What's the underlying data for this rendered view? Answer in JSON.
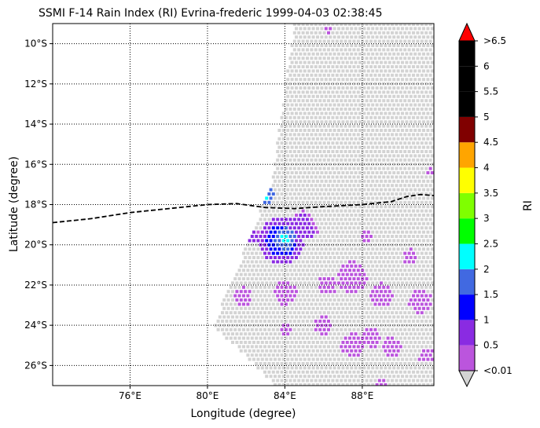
{
  "chart_data": {
    "type": "heatmap",
    "title": "SSMI F-14 Rain Index (RI) Evrina-frederic 1999-04-03 02:38:45",
    "xlabel": "Longitude (degree)",
    "ylabel": "Latitude (degree)",
    "xlim": [
      72,
      91.7
    ],
    "ylim": [
      -27,
      -9
    ],
    "x_ticks": [
      76,
      80,
      84,
      88
    ],
    "x_tick_labels": [
      "76°E",
      "80°E",
      "84°E",
      "88°E"
    ],
    "y_ticks": [
      -10,
      -12,
      -14,
      -16,
      -18,
      -20,
      -22,
      -24,
      -26
    ],
    "y_tick_labels": [
      "10°S",
      "12°S",
      "14°S",
      "16°S",
      "18°S",
      "20°S",
      "22°S",
      "24°S",
      "26°S"
    ],
    "grid": "dotted",
    "colorbar": {
      "label": "RI",
      "levels": [
        0.01,
        0.5,
        1,
        1.5,
        2,
        2.5,
        3,
        3.5,
        4,
        4.5,
        5,
        5.5,
        6,
        6.5
      ],
      "tick_labels": [
        "<0.01",
        "0.5",
        "1",
        "1.5",
        "2",
        "2.5",
        "3",
        "3.5",
        "4",
        "4.5",
        "5",
        "5.5",
        "6",
        ">6.5"
      ],
      "colors": [
        "#bb55dd",
        "#8a2be2",
        "#0000ff",
        "#4169e1",
        "#00ffff",
        "#00ff00",
        "#7fff00",
        "#ffff00",
        "#ffa500",
        "#800000",
        "#000000",
        "#000000",
        "#000000"
      ],
      "under_color": "#d3d3d3",
      "over_color": "#ff0000"
    },
    "swath": {
      "corners_lonlat": [
        [
          84.5,
          -9.0
        ],
        [
          91.7,
          -9.0
        ],
        [
          91.7,
          -27.0
        ],
        [
          83.5,
          -27.0
        ],
        [
          80.3,
          -24.0
        ],
        [
          83.3,
          -17.0
        ]
      ],
      "no_rain_color": "#d3d3d3"
    },
    "track": {
      "style": "dashed",
      "color": "#000000",
      "points": [
        [
          72.0,
          -18.9
        ],
        [
          74.0,
          -18.7
        ],
        [
          76.0,
          -18.4
        ],
        [
          78.0,
          -18.2
        ],
        [
          80.0,
          -18.0
        ],
        [
          81.5,
          -17.95
        ],
        [
          83.0,
          -18.15
        ],
        [
          84.5,
          -18.2
        ],
        [
          86.0,
          -18.1
        ],
        [
          88.0,
          -18.0
        ],
        [
          89.5,
          -17.85
        ],
        [
          90.3,
          -17.6
        ],
        [
          91.0,
          -17.5
        ],
        [
          91.7,
          -17.55
        ]
      ]
    },
    "rain_cells": [
      {
        "lon": 82.9,
        "lat": -17.5,
        "radius": 0.6,
        "ri": 2.2
      },
      {
        "lon": 82.9,
        "lat": -17.6,
        "radius": 0.2,
        "ri": 3.0
      },
      {
        "lon": 82.8,
        "lat": -16.9,
        "radius": 0.4,
        "ri": 1.2
      },
      {
        "lon": 83.8,
        "lat": -19.8,
        "radius": 1.2,
        "ri": 1.3
      },
      {
        "lon": 84.0,
        "lat": -19.7,
        "radius": 0.55,
        "ri": 2.4
      },
      {
        "lon": 82.3,
        "lat": -19.6,
        "radius": 0.4,
        "ri": 0.7
      },
      {
        "lon": 84.9,
        "lat": -18.8,
        "radius": 0.5,
        "ri": 0.7
      },
      {
        "lon": 85.3,
        "lat": -19.3,
        "radius": 0.4,
        "ri": 0.7
      },
      {
        "lon": 84.0,
        "lat": -22.4,
        "radius": 0.6,
        "ri": 0.3
      },
      {
        "lon": 86.2,
        "lat": -22.0,
        "radius": 0.5,
        "ri": 0.3
      },
      {
        "lon": 87.5,
        "lat": -21.6,
        "radius": 0.8,
        "ri": 0.3
      },
      {
        "lon": 89.0,
        "lat": -22.5,
        "radius": 0.6,
        "ri": 0.3
      },
      {
        "lon": 91.0,
        "lat": -22.8,
        "radius": 0.6,
        "ri": 0.3
      },
      {
        "lon": 81.8,
        "lat": -22.6,
        "radius": 0.5,
        "ri": 0.3
      },
      {
        "lon": 86.0,
        "lat": -24.0,
        "radius": 0.5,
        "ri": 0.3
      },
      {
        "lon": 88.5,
        "lat": -24.6,
        "radius": 0.5,
        "ri": 0.3
      },
      {
        "lon": 87.5,
        "lat": -25.0,
        "radius": 0.6,
        "ri": 0.3
      },
      {
        "lon": 89.5,
        "lat": -25.1,
        "radius": 0.5,
        "ri": 0.3
      },
      {
        "lon": 91.3,
        "lat": -25.5,
        "radius": 0.4,
        "ri": 0.3
      },
      {
        "lon": 90.5,
        "lat": -20.6,
        "radius": 0.4,
        "ri": 0.3
      },
      {
        "lon": 84.0,
        "lat": -24.2,
        "radius": 0.3,
        "ri": 0.3
      },
      {
        "lon": 88.2,
        "lat": -19.6,
        "radius": 0.3,
        "ri": 0.3
      },
      {
        "lon": 91.5,
        "lat": -16.3,
        "radius": 0.2,
        "ri": 0.3
      },
      {
        "lon": 86.2,
        "lat": -9.3,
        "radius": 0.2,
        "ri": 0.3
      },
      {
        "lon": 89.0,
        "lat": -26.9,
        "radius": 0.3,
        "ri": 0.3
      }
    ]
  }
}
